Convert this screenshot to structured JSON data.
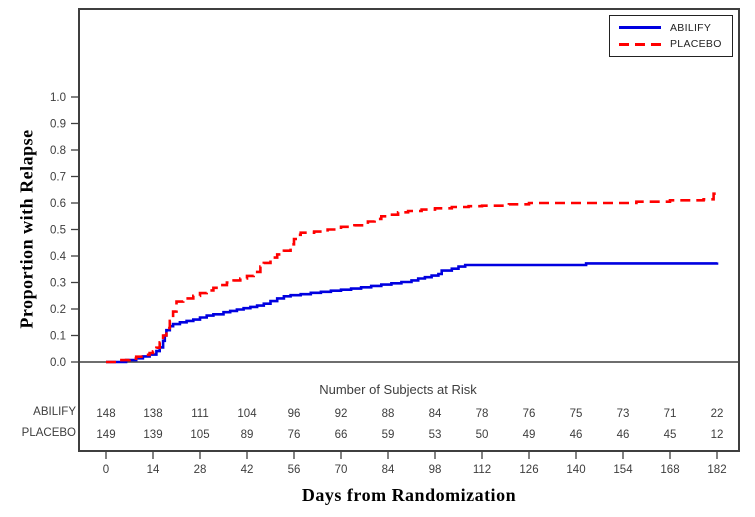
{
  "chart_data": {
    "type": "line",
    "subtype": "kaplan-meier-step",
    "title": "",
    "xlabel": "Days from Randomization",
    "ylabel": "Proportion with Relapse",
    "x_ticks": [
      0,
      14,
      28,
      42,
      56,
      70,
      84,
      98,
      112,
      126,
      140,
      154,
      168,
      182
    ],
    "y_ticks": [
      0.0,
      0.1,
      0.2,
      0.3,
      0.4,
      0.5,
      0.6,
      0.7,
      0.8,
      0.9,
      1.0
    ],
    "xlim": [
      0,
      182
    ],
    "ylim": [
      0,
      1.0
    ],
    "grid": false,
    "legend_position": "top-right",
    "frame_color": "#3f3f3f",
    "tick_text_color": "#3d3d3d",
    "series": [
      {
        "name": "ABILIFY",
        "color": "#0000e0",
        "style": "solid",
        "points": [
          [
            0,
            0
          ],
          [
            6,
            0.007
          ],
          [
            9,
            0.014
          ],
          [
            11,
            0.021
          ],
          [
            13,
            0.028
          ],
          [
            15,
            0.041
          ],
          [
            16,
            0.055
          ],
          [
            17,
            0.08
          ],
          [
            17.5,
            0.1
          ],
          [
            18,
            0.12
          ],
          [
            19,
            0.135
          ],
          [
            20,
            0.143
          ],
          [
            22,
            0.15
          ],
          [
            24,
            0.155
          ],
          [
            26,
            0.16
          ],
          [
            28,
            0.168
          ],
          [
            30,
            0.175
          ],
          [
            32,
            0.18
          ],
          [
            35,
            0.188
          ],
          [
            37,
            0.193
          ],
          [
            39,
            0.198
          ],
          [
            41,
            0.203
          ],
          [
            43,
            0.208
          ],
          [
            45,
            0.213
          ],
          [
            47,
            0.22
          ],
          [
            49,
            0.23
          ],
          [
            51,
            0.24
          ],
          [
            53,
            0.248
          ],
          [
            55,
            0.252
          ],
          [
            58,
            0.256
          ],
          [
            61,
            0.261
          ],
          [
            64,
            0.265
          ],
          [
            67,
            0.269
          ],
          [
            70,
            0.273
          ],
          [
            73,
            0.277
          ],
          [
            76,
            0.282
          ],
          [
            79,
            0.287
          ],
          [
            82,
            0.292
          ],
          [
            85,
            0.297
          ],
          [
            88,
            0.302
          ],
          [
            91,
            0.308
          ],
          [
            93,
            0.315
          ],
          [
            95,
            0.32
          ],
          [
            97,
            0.326
          ],
          [
            99,
            0.332
          ],
          [
            100,
            0.345
          ],
          [
            103,
            0.352
          ],
          [
            105,
            0.36
          ],
          [
            107,
            0.366
          ],
          [
            143,
            0.372
          ],
          [
            182,
            0.376
          ]
        ]
      },
      {
        "name": "PLACEBO",
        "color": "#ff0000",
        "style": "dashed",
        "points": [
          [
            0,
            0
          ],
          [
            4,
            0.007
          ],
          [
            7,
            0.013
          ],
          [
            9,
            0.02
          ],
          [
            11,
            0.027
          ],
          [
            13,
            0.034
          ],
          [
            14,
            0.04
          ],
          [
            15,
            0.054
          ],
          [
            16,
            0.074
          ],
          [
            17,
            0.1
          ],
          [
            18,
            0.128
          ],
          [
            19,
            0.155
          ],
          [
            20,
            0.19
          ],
          [
            21,
            0.228
          ],
          [
            23,
            0.24
          ],
          [
            26,
            0.25
          ],
          [
            28,
            0.26
          ],
          [
            30,
            0.27
          ],
          [
            32,
            0.28
          ],
          [
            34,
            0.29
          ],
          [
            36,
            0.3
          ],
          [
            38,
            0.308
          ],
          [
            40,
            0.315
          ],
          [
            42,
            0.325
          ],
          [
            44,
            0.34
          ],
          [
            46,
            0.36
          ],
          [
            47,
            0.374
          ],
          [
            49,
            0.394
          ],
          [
            51,
            0.406
          ],
          [
            53,
            0.42
          ],
          [
            55,
            0.444
          ],
          [
            56,
            0.464
          ],
          [
            57,
            0.48
          ],
          [
            58,
            0.488
          ],
          [
            62,
            0.492
          ],
          [
            66,
            0.5
          ],
          [
            70,
            0.51
          ],
          [
            74,
            0.516
          ],
          [
            78,
            0.53
          ],
          [
            80,
            0.54
          ],
          [
            82,
            0.55
          ],
          [
            84,
            0.556
          ],
          [
            87,
            0.565
          ],
          [
            90,
            0.57
          ],
          [
            94,
            0.575
          ],
          [
            98,
            0.58
          ],
          [
            103,
            0.585
          ],
          [
            108,
            0.588
          ],
          [
            112,
            0.59
          ],
          [
            120,
            0.595
          ],
          [
            126,
            0.6
          ],
          [
            158,
            0.605
          ],
          [
            168,
            0.61
          ],
          [
            178,
            0.614
          ],
          [
            181,
            0.635
          ]
        ]
      }
    ],
    "at_risk": {
      "header": "Number of Subjects at Risk",
      "columns_days": [
        0,
        14,
        28,
        42,
        56,
        70,
        84,
        98,
        112,
        126,
        140,
        154,
        168,
        182
      ],
      "rows": [
        {
          "label": "ABILIFY",
          "values": [
            148,
            138,
            111,
            104,
            96,
            92,
            88,
            84,
            78,
            76,
            75,
            73,
            71,
            22
          ]
        },
        {
          "label": "PLACEBO",
          "values": [
            149,
            139,
            105,
            89,
            76,
            66,
            59,
            53,
            50,
            49,
            46,
            46,
            45,
            12
          ]
        }
      ]
    }
  }
}
